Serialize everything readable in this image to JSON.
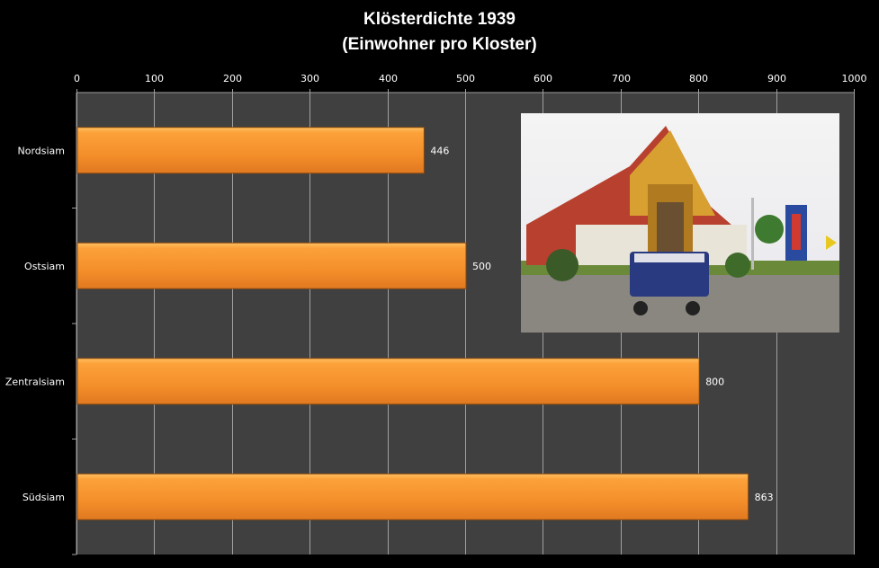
{
  "chart_data": {
    "type": "bar",
    "orientation": "horizontal",
    "title": "Klösterdichte 1939",
    "subtitle": "(Einwohner pro Kloster)",
    "categories": [
      "Nordsiam",
      "Ostsiam",
      "Zentralsiam",
      "Südsiam"
    ],
    "values": [
      446,
      500,
      800,
      863
    ],
    "data_labels": [
      "446",
      "500",
      "800",
      "863"
    ],
    "xlim": [
      0,
      1000
    ],
    "x_ticks": [
      "0",
      "100",
      "200",
      "300",
      "400",
      "500",
      "600",
      "700",
      "800",
      "900",
      "1000"
    ],
    "x_axis_position": "top",
    "grid": true,
    "legend": "none",
    "colors": {
      "bar": "#f7922a",
      "plot_background": "#404040",
      "background": "#000000",
      "text": "#ffffff",
      "grid": "#a0a0a0"
    }
  },
  "image": {
    "description_label": ""
  }
}
